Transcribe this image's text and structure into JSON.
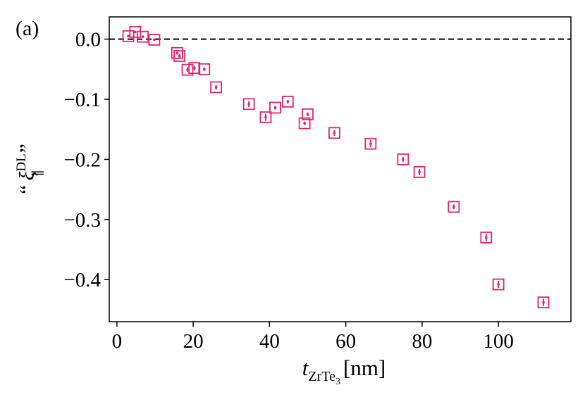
{
  "panel_label": "(a)",
  "chart_data": {
    "type": "scatter",
    "xlabel": {
      "main": "t",
      "sub": "ZrTe",
      "subsub": "3",
      "unit": "[nm]"
    },
    "ylabel": {
      "open": "“",
      "main": "ξ",
      "sup": "DL",
      "sub": "∥",
      "close": "”"
    },
    "xlim": [
      -2,
      119
    ],
    "ylim": [
      -0.47,
      0.037
    ],
    "xticks": [
      0,
      20,
      40,
      60,
      80,
      100
    ],
    "xtick_labels": [
      "0",
      "20",
      "40",
      "60",
      "80",
      "100"
    ],
    "yticks": [
      0.0,
      -0.1,
      -0.2,
      -0.3,
      -0.4
    ],
    "ytick_labels": [
      "0.0",
      "−0.1",
      "−0.2",
      "−0.3",
      "−0.4"
    ],
    "reference_line": {
      "y": 0.0,
      "style": "dashed"
    },
    "marker": "open-square-with-errorbar",
    "color": "#e0246c",
    "points": [
      {
        "x": 3.0,
        "y": 0.005,
        "err": 0.002
      },
      {
        "x": 4.8,
        "y": 0.012,
        "err": 0.002
      },
      {
        "x": 6.8,
        "y": 0.004,
        "err": 0.002
      },
      {
        "x": 9.8,
        "y": -0.001,
        "err": 0.002
      },
      {
        "x": 15.8,
        "y": -0.023,
        "err": 0.003
      },
      {
        "x": 16.4,
        "y": -0.028,
        "err": 0.003
      },
      {
        "x": 18.5,
        "y": -0.051,
        "err": 0.004
      },
      {
        "x": 20.3,
        "y": -0.048,
        "err": 0.004
      },
      {
        "x": 22.9,
        "y": -0.05,
        "err": 0.003
      },
      {
        "x": 26.0,
        "y": -0.08,
        "err": 0.004
      },
      {
        "x": 34.6,
        "y": -0.108,
        "err": 0.005
      },
      {
        "x": 39.0,
        "y": -0.13,
        "err": 0.006
      },
      {
        "x": 41.5,
        "y": -0.114,
        "err": 0.003
      },
      {
        "x": 44.8,
        "y": -0.104,
        "err": 0.003
      },
      {
        "x": 49.2,
        "y": -0.14,
        "err": 0.003
      },
      {
        "x": 50.0,
        "y": -0.125,
        "err": 0.003
      },
      {
        "x": 57.0,
        "y": -0.156,
        "err": 0.005
      },
      {
        "x": 66.5,
        "y": -0.174,
        "err": 0.006
      },
      {
        "x": 75.0,
        "y": -0.2,
        "err": 0.004
      },
      {
        "x": 79.3,
        "y": -0.221,
        "err": 0.005
      },
      {
        "x": 88.3,
        "y": -0.279,
        "err": 0.004
      },
      {
        "x": 96.8,
        "y": -0.33,
        "err": 0.006
      },
      {
        "x": 100.0,
        "y": -0.408,
        "err": 0.006
      },
      {
        "x": 111.8,
        "y": -0.438,
        "err": 0.006
      }
    ]
  }
}
